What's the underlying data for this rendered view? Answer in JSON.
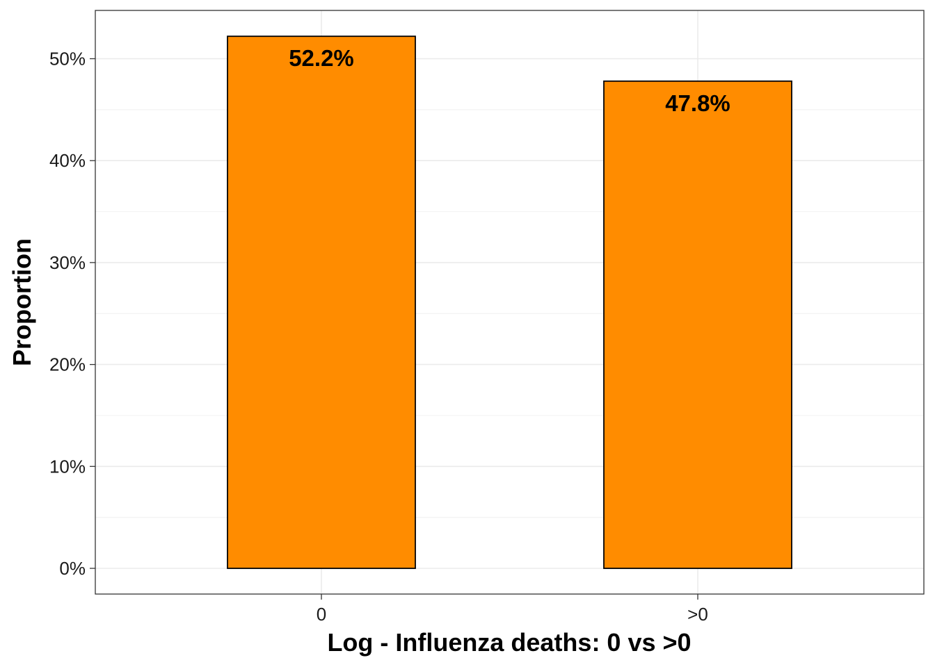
{
  "chart_data": {
    "type": "bar",
    "categories": [
      "0",
      ">0"
    ],
    "values": [
      52.2,
      47.8
    ],
    "data_labels": [
      "52.2%",
      "47.8%"
    ],
    "title": "",
    "xlabel": "Log - Influenza deaths: 0 vs >0",
    "ylabel": "Proportion",
    "ylim": [
      0,
      54.8
    ],
    "y_ticks": [
      0,
      10,
      20,
      30,
      40,
      50
    ],
    "y_tick_labels": [
      "0%",
      "10%",
      "20%",
      "30%",
      "40%",
      "50%"
    ],
    "grid": true,
    "legend": "none",
    "colors": {
      "bar_fill": "#FF8C00",
      "bar_stroke": "#000000",
      "grid_major": "#EBEBEB",
      "grid_minor": "#F3F3F3",
      "panel_border": "#333333"
    }
  }
}
